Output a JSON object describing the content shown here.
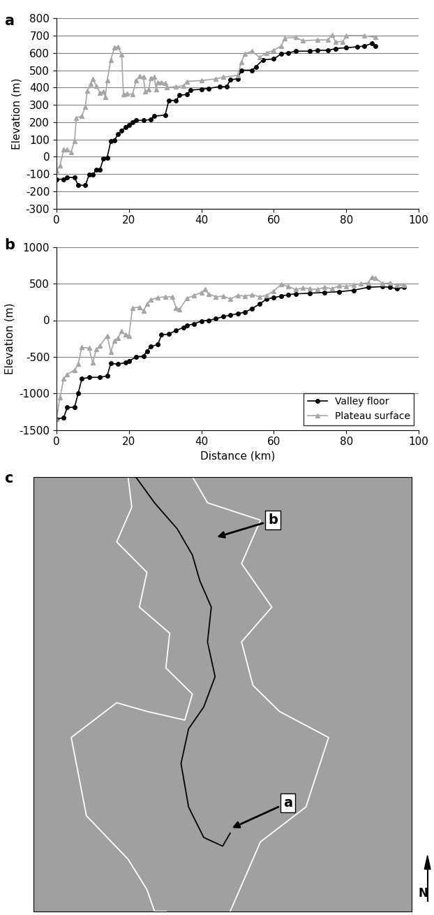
{
  "chart_data": [
    {
      "type": "line",
      "title": "a",
      "y_label": "Elevation (m)",
      "xlim": [
        0,
        100
      ],
      "xticks": [
        0,
        20,
        40,
        60,
        80,
        100
      ],
      "ylim": [
        -300,
        800
      ],
      "yticks": [
        -300,
        -200,
        -100,
        0,
        100,
        200,
        300,
        400,
        500,
        600,
        700,
        800
      ],
      "grid": true,
      "series": [
        {
          "name": "Valley floor",
          "color": "#000000",
          "marker": "circle",
          "x": [
            0,
            2,
            3,
            5,
            6,
            8,
            9,
            10,
            11,
            12,
            13,
            14,
            15,
            16,
            17,
            18,
            19,
            20,
            21,
            22,
            24,
            26,
            27,
            30,
            31,
            33,
            34,
            36,
            37,
            40,
            42,
            45,
            47,
            48,
            50,
            51,
            54,
            55,
            57,
            60,
            62,
            64,
            66,
            70,
            72,
            75,
            77,
            80,
            83,
            85,
            87,
            88
          ],
          "values": [
            -130,
            -130,
            -120,
            -120,
            -165,
            -165,
            -105,
            -105,
            -75,
            -75,
            -10,
            -5,
            90,
            95,
            130,
            150,
            170,
            185,
            200,
            210,
            210,
            215,
            235,
            240,
            325,
            325,
            355,
            360,
            385,
            390,
            395,
            405,
            405,
            445,
            450,
            500,
            500,
            520,
            560,
            565,
            595,
            600,
            610,
            610,
            615,
            615,
            625,
            630,
            635,
            640,
            655,
            640
          ]
        },
        {
          "name": "Plateau surface",
          "color": "#a6a6a6",
          "marker": "triangle",
          "x": [
            0,
            1,
            2,
            3,
            4,
            5,
            5.5,
            7,
            8,
            8.5,
            9.5,
            10,
            11,
            12,
            13,
            13.5,
            14,
            15,
            16,
            17,
            18,
            18.5,
            19.5,
            21,
            22,
            23,
            24,
            24.5,
            25.5,
            26,
            27,
            27.5,
            28,
            29,
            30,
            30.5,
            33,
            35,
            36,
            40,
            44,
            46,
            50,
            51,
            52,
            54,
            56,
            58,
            60,
            62,
            63,
            66,
            68,
            72,
            75,
            76,
            77,
            79,
            80,
            85,
            88
          ],
          "values": [
            -80,
            -50,
            40,
            40,
            25,
            90,
            225,
            235,
            290,
            380,
            420,
            450,
            410,
            370,
            375,
            345,
            440,
            560,
            630,
            635,
            590,
            360,
            365,
            360,
            440,
            465,
            460,
            375,
            390,
            455,
            460,
            390,
            430,
            430,
            425,
            400,
            405,
            410,
            435,
            440,
            450,
            460,
            470,
            545,
            595,
            610,
            575,
            600,
            615,
            640,
            685,
            690,
            670,
            675,
            675,
            705,
            665,
            665,
            700,
            700,
            690
          ]
        }
      ]
    },
    {
      "type": "line",
      "title": "b",
      "x_label": "Distance (km)",
      "y_label": "Elevation (m)",
      "xlim": [
        0,
        100
      ],
      "xticks": [
        0,
        20,
        40,
        60,
        80,
        100
      ],
      "ylim": [
        -1500,
        1000
      ],
      "yticks": [
        -1500,
        -1000,
        -500,
        0,
        500,
        1000
      ],
      "grid": true,
      "legend": "lower right",
      "series": [
        {
          "name": "Valley floor",
          "color": "#000000",
          "marker": "circle",
          "x": [
            0,
            2,
            3,
            5,
            6,
            7,
            9,
            12,
            14,
            15,
            17,
            19,
            20,
            22,
            24,
            25,
            26,
            28,
            29,
            31,
            33,
            35,
            36,
            38,
            40,
            42,
            44,
            46,
            48,
            50,
            52,
            54,
            56,
            58,
            60,
            62,
            64,
            66,
            70,
            74,
            78,
            82,
            86,
            90,
            92,
            94,
            96
          ],
          "values": [
            -1350,
            -1330,
            -1190,
            -1190,
            -1000,
            -800,
            -780,
            -780,
            -760,
            -590,
            -600,
            -580,
            -560,
            -500,
            -490,
            -420,
            -360,
            -330,
            -200,
            -190,
            -140,
            -100,
            -70,
            -50,
            -10,
            0,
            20,
            50,
            70,
            90,
            110,
            160,
            220,
            290,
            310,
            330,
            350,
            360,
            370,
            380,
            390,
            410,
            450,
            460,
            450,
            430,
            450
          ]
        },
        {
          "name": "Plateau surface",
          "color": "#a6a6a6",
          "marker": "triangle",
          "x": [
            0,
            1,
            2,
            3,
            5,
            6,
            7,
            9,
            10,
            11,
            12,
            14,
            15,
            16,
            17,
            18,
            19,
            20,
            21,
            23,
            24,
            25,
            26,
            28,
            30,
            32,
            33,
            34,
            36,
            38,
            40,
            41,
            42,
            44,
            46,
            48,
            50,
            52,
            54,
            56,
            58,
            60,
            62,
            64,
            66,
            68,
            70,
            72,
            74,
            76,
            78,
            80,
            82,
            84,
            86,
            87,
            88,
            90,
            92,
            94,
            96
          ],
          "values": [
            -1350,
            -1050,
            -800,
            -740,
            -680,
            -600,
            -370,
            -380,
            -580,
            -400,
            -350,
            -210,
            -430,
            -280,
            -240,
            -150,
            -200,
            -210,
            170,
            180,
            130,
            220,
            280,
            310,
            320,
            320,
            170,
            150,
            300,
            340,
            380,
            420,
            360,
            320,
            330,
            290,
            340,
            330,
            350,
            320,
            340,
            400,
            490,
            460,
            420,
            440,
            430,
            420,
            450,
            430,
            470,
            460,
            480,
            500,
            510,
            590,
            580,
            500,
            510,
            480,
            480
          ]
        }
      ]
    }
  ],
  "map": {
    "label": "c",
    "north": "N",
    "markers": [
      "b",
      "a"
    ]
  }
}
